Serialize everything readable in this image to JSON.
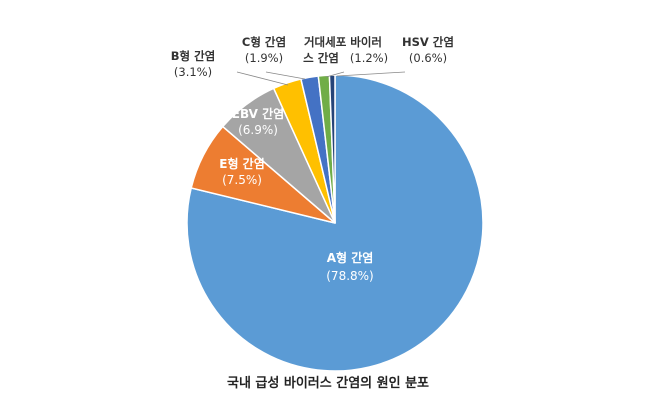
{
  "chart_data": {
    "type": "pie",
    "title": "국내 급성 바이러스 간염의 원인 분포",
    "start_angle_deg": 0,
    "direction": "clockwise",
    "slices": [
      {
        "label": "A형 간염",
        "value_label": "(78.8%)",
        "value": 78.8,
        "color": "#5B9BD5",
        "label_style": "inside-light"
      },
      {
        "label": "E형 간염",
        "value_label": "(7.5%)",
        "value": 7.5,
        "color": "#ED7D31",
        "label_style": "inside-light"
      },
      {
        "label": "EBV 간염",
        "value_label": "(6.9%)",
        "value": 6.9,
        "color": "#A5A5A5",
        "label_style": "inside-light"
      },
      {
        "label": "B형 간염",
        "value_label": "(3.1%)",
        "value": 3.1,
        "color": "#FFC000",
        "label_style": "outside"
      },
      {
        "label": "C형 간염",
        "value_label": "(1.9%)",
        "value": 1.9,
        "color": "#4472C4",
        "label_style": "outside"
      },
      {
        "label": "거대세포 바이러스 간염",
        "label_lines": [
          "거대세포 바이러",
          "스 간염"
        ],
        "value_label": "(1.2%)",
        "value": 1.2,
        "color": "#70AD47",
        "label_style": "outside"
      },
      {
        "label": "HSV 간염",
        "value_label": "(0.6%)",
        "value": 0.6,
        "color": "#264478",
        "label_style": "outside"
      }
    ]
  }
}
